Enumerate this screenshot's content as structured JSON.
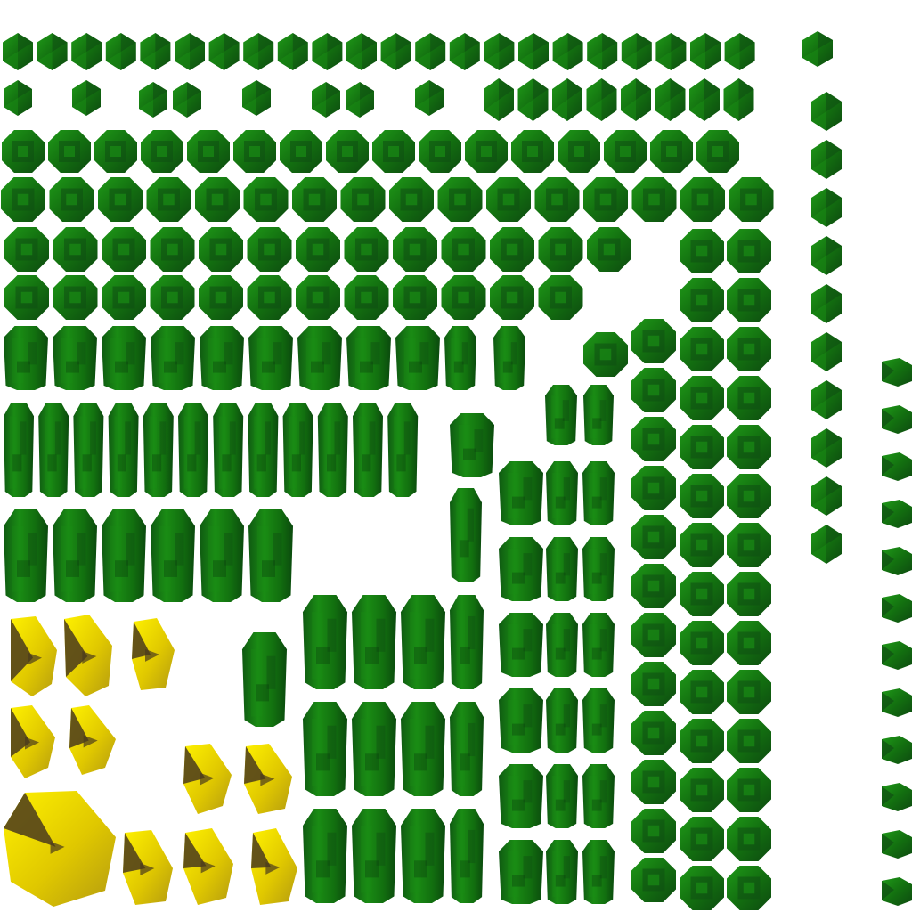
{
  "atlas": {
    "colors": {
      "background": "#ffffff",
      "green_light": "#1a8c14",
      "green_mid": "#137010",
      "green_dark": "#0f4f12",
      "green_shade": "#0a3a0c",
      "yellow_light": "#f7e300",
      "yellow_mid": "#d9c000",
      "yellow_dark": "#4a3a1c"
    },
    "shapes": [
      "gem-diamond",
      "gem-octagon",
      "gem-short-prism",
      "gem-tall-prism",
      "gem-blob",
      "gem-side-view"
    ]
  }
}
